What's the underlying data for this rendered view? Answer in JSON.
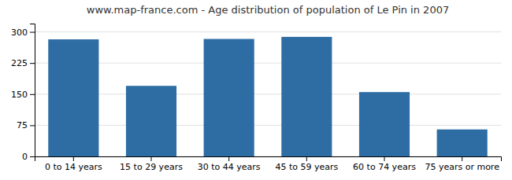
{
  "chart_data": {
    "type": "bar",
    "title": "www.map-france.com - Age distribution of population of Le Pin in 2007",
    "categories": [
      "0 to 14 years",
      "15 to 29 years",
      "30 to 44 years",
      "45 to 59 years",
      "60 to 74 years",
      "75 years or more"
    ],
    "values": [
      282,
      170,
      283,
      288,
      155,
      65
    ],
    "color": "#2e6da4",
    "ylim": [
      0,
      320
    ],
    "yticks": [
      0,
      75,
      150,
      225,
      300
    ],
    "grid": true
  }
}
